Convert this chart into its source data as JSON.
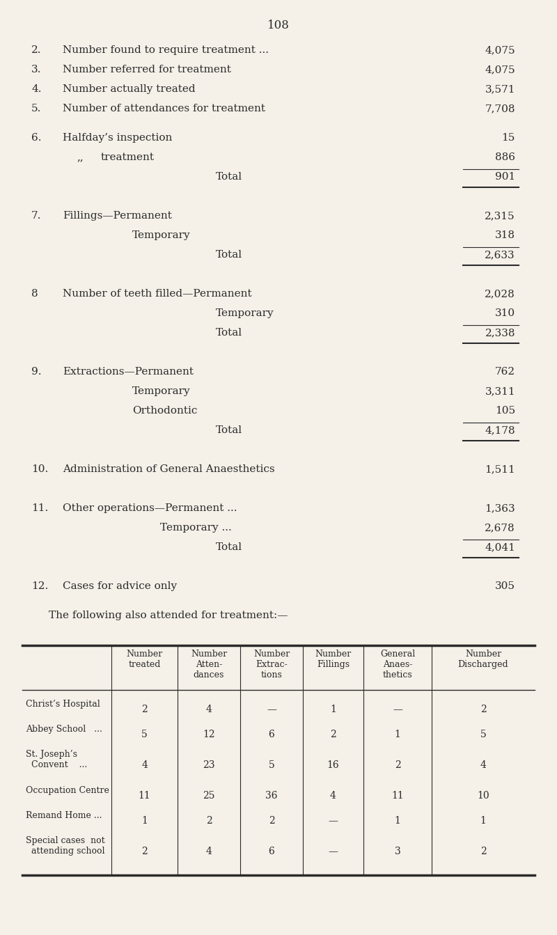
{
  "bg_color": "#f5f0e8",
  "page_number": "108",
  "text_color": "#2a2a2a",
  "font_size": 11.0,
  "items_2_5": [
    {
      "num": "2.",
      "label": "Number found to require treatment ...",
      "trailing": "...      ...",
      "value": "4,075"
    },
    {
      "num": "3.",
      "label": "Number referred for treatment",
      "trailing": "...     ...     ...",
      "value": "4,075"
    },
    {
      "num": "4.",
      "label": "Number actually treated",
      "trailing": "...     ...     ...     ...",
      "value": "3,571"
    },
    {
      "num": "5.",
      "label": "Number of attendances for treatment",
      "trailing": "...     ...",
      "value": "7,708"
    }
  ],
  "section6": {
    "num": "6.",
    "line1_label": "Halfday’s inspection",
    "line1_trail": "...     ...     ...     ...     ...",
    "line1_val": "15",
    "line2_label": "“”     treatment",
    "line2_trail": "...     ...     ...     ...     ...",
    "line2_val": "886",
    "total_val": "901"
  },
  "section7": {
    "num": "7.",
    "line1_label": "Fillings—Permanent",
    "line1_trail": "...     ...     ...     ...     ...",
    "line1_val": "2,315",
    "line2_label": "Temporary",
    "line2_trail": "...     ...     ...     ...     ...",
    "line2_val": "318",
    "total_val": "2,633"
  },
  "section8": {
    "num": "8",
    "line1_label": "Number of teeth filled—Permanent",
    "line1_trail": "...     ...     ...",
    "line1_val": "2,028",
    "line2_label": "Temporary",
    "line2_trail": "...     ...     ...",
    "line2_val": "310",
    "total_val": "2,338"
  },
  "section9": {
    "num": "9.",
    "line1_label": "Extractions—Permanent",
    "line1_trail": "...     ...     ...     ...",
    "line1_val": "762",
    "line2_label": "Temporary",
    "line2_trail": "...     ...     ...     ...",
    "line2_val": "3,311",
    "line3_label": "Orthodontic",
    "line3_trail": "...     ...     ...     ...",
    "line3_val": "105",
    "total_val": "4,178"
  },
  "section10": {
    "num": "10.",
    "label": "Administration of General Anaesthetics",
    "trail": "...     ...",
    "value": "1,511"
  },
  "section11": {
    "num": "11.",
    "line1_label": "Other operations—Permanent ...",
    "line1_trail": "...     ...     ...",
    "line1_val": "1,363",
    "line2_label": "Temporary ...",
    "line2_trail": "...     ...     ∴.",
    "line2_val": "2,678",
    "total_val": "4,041"
  },
  "section12": {
    "num": "12.",
    "label": "Cases for advice only",
    "trail": "...     ...     ...     ...",
    "value": "305"
  },
  "table_intro": "The following also attended for treatment:—",
  "table_col_headers": [
    "Number\ntreated",
    "Number\nAtten-\ndances",
    "Number\nExtrac-\ntions",
    "Number\nFillings",
    "General\nAnaes-\nthetics",
    "Number\nDischarged"
  ],
  "table_rows": [
    [
      "Christ’s Hospital",
      "2",
      "4",
      "—",
      "1",
      "—",
      "2"
    ],
    [
      "Abbey School   ...",
      "5",
      "12",
      "6",
      "2",
      "1",
      "5"
    ],
    [
      "St. Joseph’s\n  Convent    ...",
      "4",
      "23",
      "5",
      "16",
      "2",
      "4"
    ],
    [
      "Occupation Centre",
      "11",
      "25",
      "36",
      "4",
      "11",
      "10"
    ],
    [
      "Remand Home ...",
      "1",
      "2",
      "2",
      "—",
      "1",
      "1"
    ],
    [
      "Special cases  not\n  attending school",
      "2",
      "4",
      "6",
      "—",
      "3",
      "2"
    ]
  ]
}
